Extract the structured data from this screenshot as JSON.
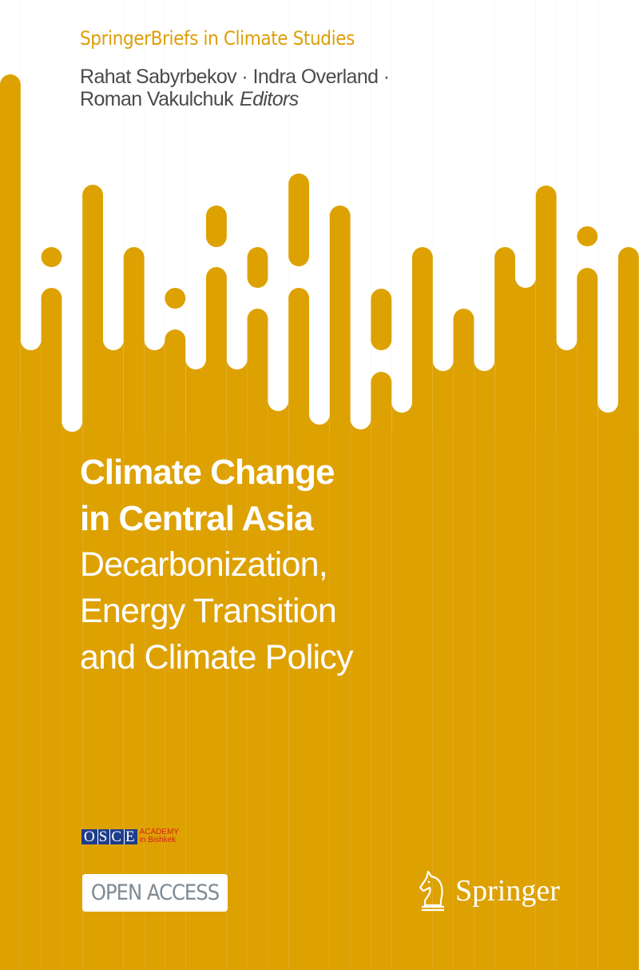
{
  "cover": {
    "series": "SpringerBriefs in Climate Studies",
    "authors_line1": "Rahat Sabyrbekov · Indra Overland ·",
    "authors_line2": "Roman Vakulchuk",
    "editors_label": "Editors",
    "title_line1": "Climate Change",
    "title_line2": "in Central Asia",
    "subtitle_line1": "Decarbonization,",
    "subtitle_line2": "Energy Transition",
    "subtitle_line3": "and Climate Policy",
    "open_access": "OPEN ACCESS",
    "publisher": "Springer",
    "partner_logo": {
      "letters": [
        "O",
        "S",
        "C",
        "E"
      ],
      "line1": "ACADEMY",
      "line2": "in Bishkek"
    }
  },
  "colors": {
    "gold": "#dea102",
    "white": "#ffffff",
    "author_gray": "#4b4b4b",
    "osce_blue": "#1f3d8a",
    "osce_red": "#d4231a"
  },
  "icons": {
    "publisher_logo": "chess-knight-icon"
  }
}
